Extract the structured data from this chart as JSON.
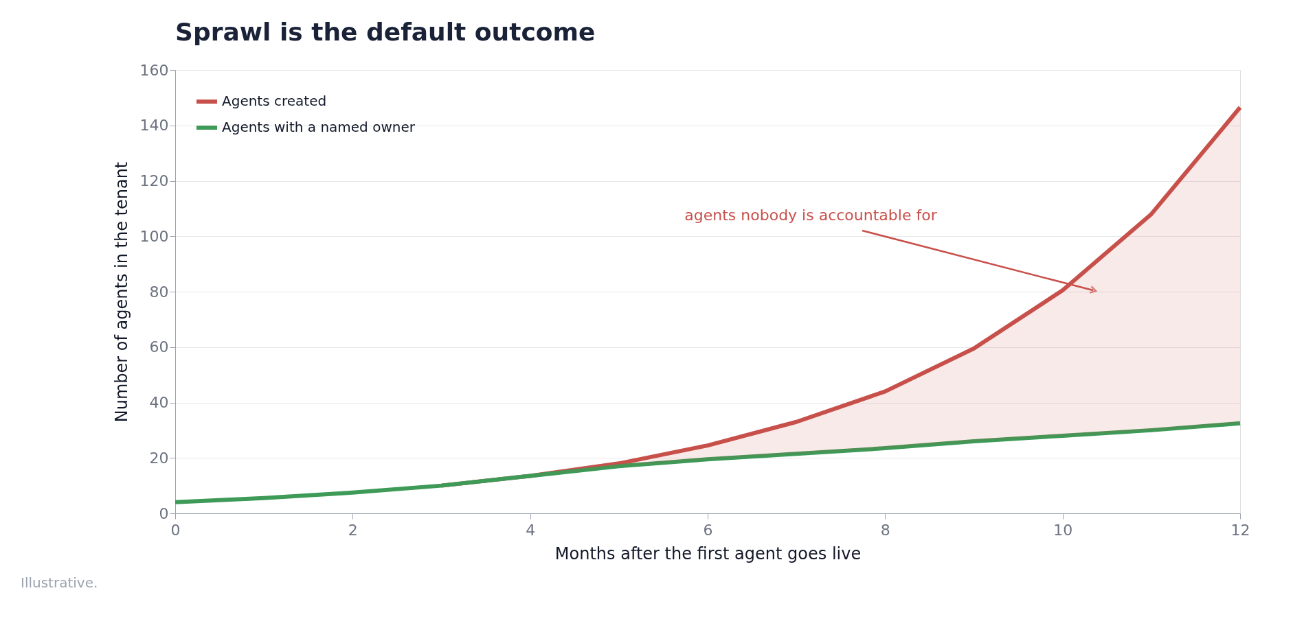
{
  "chart_data": {
    "type": "line",
    "title": "Sprawl is the default outcome",
    "xlabel": "Months after the first agent goes live",
    "ylabel": "Number of agents in the tenant",
    "x": [
      0,
      1,
      2,
      3,
      4,
      5,
      6,
      7,
      8,
      9,
      10,
      11,
      12
    ],
    "series": [
      {
        "name": "Agents created",
        "color": "#c8504b",
        "values": [
          null,
          null,
          null,
          10,
          13.5,
          18,
          24.5,
          33,
          44,
          59.5,
          80.5,
          108,
          146.5
        ],
        "lower": [
          4,
          5.5,
          7.5,
          10,
          13.5,
          17,
          19.5,
          21.5,
          23.5,
          26,
          28,
          30,
          32.5
        ],
        "upper": [
          4,
          5.5,
          7.5,
          10,
          13.5,
          18,
          24.5,
          33,
          44,
          59.5,
          80.5,
          108,
          146.5
        ]
      },
      {
        "name": "Agents with a named owner",
        "color": "#3d9a57",
        "values": [
          4,
          5.5,
          7.5,
          10,
          13.5,
          17,
          19.5,
          21.5,
          23.5,
          26,
          28,
          30,
          32.5
        ]
      }
    ],
    "annotations": [
      "agents nobody is accountable for",
      "Illustrative."
    ],
    "xlim": [
      0,
      12
    ],
    "xticks": [
      0,
      2,
      4,
      6,
      8,
      10,
      12
    ],
    "ylim": [
      0,
      160
    ],
    "yticks": [
      0,
      20,
      40,
      60,
      80,
      100,
      120,
      140,
      160
    ],
    "grid": "y",
    "legend": "top left",
    "marker": "none",
    "line_style": "solid"
  }
}
